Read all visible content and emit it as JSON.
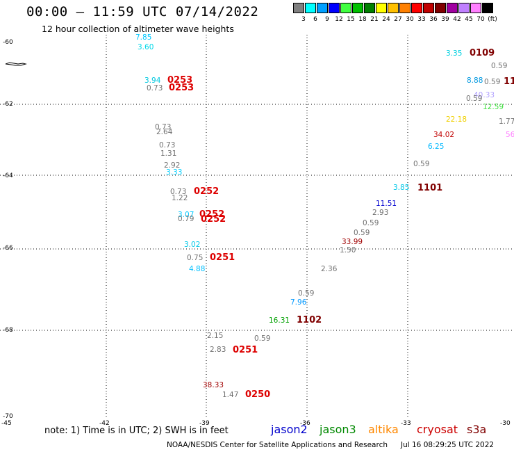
{
  "header": {
    "title": "00:00 – 11:59 UTC 07/14/2022",
    "subtitle": "12 hour collection of altimeter wave heights"
  },
  "color_scale": {
    "colors": [
      "#808080",
      "#00ffff",
      "#00a0ff",
      "#0000ff",
      "#40ff40",
      "#00c000",
      "#008000",
      "#ffff00",
      "#ffc000",
      "#ff8000",
      "#ff0000",
      "#c00000",
      "#800000",
      "#a000a0",
      "#c080ff",
      "#ff80ff",
      "#000000"
    ],
    "labels": [
      "3",
      "6",
      "9",
      "12",
      "15",
      "18",
      "21",
      "24",
      "27",
      "30",
      "33",
      "36",
      "39",
      "42",
      "45",
      "70",
      "(ft)"
    ]
  },
  "axes": {
    "y_labels": [
      "-60",
      "-62",
      "-64",
      "-66",
      "-68",
      "-70"
    ],
    "x_labels": [
      "-45",
      "-42",
      "-39",
      "-36",
      "-33",
      "-30"
    ]
  },
  "observations": [
    {
      "text": "7.85",
      "color": "#00c8ff"
    },
    {
      "text": "3.60",
      "color": "#00d8e8"
    },
    {
      "text": "3.94",
      "color": "#00c8e0"
    },
    {
      "text": "0.73",
      "color": "#707070"
    },
    {
      "text": "0.73",
      "color": "#707070"
    },
    {
      "text": "2.64",
      "color": "#707070"
    },
    {
      "text": "0.73",
      "color": "#707070"
    },
    {
      "text": "1.31",
      "color": "#707070"
    },
    {
      "text": "2.92",
      "color": "#707070"
    },
    {
      "text": "3.33",
      "color": "#00d0ff"
    },
    {
      "text": "0.73",
      "color": "#707070"
    },
    {
      "text": "1.22",
      "color": "#707070"
    },
    {
      "text": "3.07",
      "color": "#00c8ff"
    },
    {
      "text": "0.79",
      "color": "#707070"
    },
    {
      "text": "3.02",
      "color": "#00c8e8"
    },
    {
      "text": "0.75",
      "color": "#707070"
    },
    {
      "text": "4.88",
      "color": "#00c0ff"
    },
    {
      "text": "2.36",
      "color": "#707070"
    },
    {
      "text": "0.59",
      "color": "#707070"
    },
    {
      "text": "7.96",
      "color": "#0098ff"
    },
    {
      "text": "16.31",
      "color": "#00a000"
    },
    {
      "text": "2.15",
      "color": "#707070"
    },
    {
      "text": "0.59",
      "color": "#707070"
    },
    {
      "text": "2.83",
      "color": "#707070"
    },
    {
      "text": "38.33",
      "color": "#a00000"
    },
    {
      "text": "1.47",
      "color": "#707070"
    },
    {
      "text": "3.35",
      "color": "#00d0e0"
    },
    {
      "text": "0.59",
      "color": "#707070"
    },
    {
      "text": "8.88",
      "color": "#0098e0"
    },
    {
      "text": "0.59",
      "color": "#707070"
    },
    {
      "text": "40.33",
      "color": "#b0a0ff"
    },
    {
      "text": "0.59",
      "color": "#707070"
    },
    {
      "text": "12.59",
      "color": "#40e040"
    },
    {
      "text": "22.18",
      "color": "#f0d000"
    },
    {
      "text": "1.77",
      "color": "#707070"
    },
    {
      "text": "34.02",
      "color": "#c00000"
    },
    {
      "text": "56",
      "color": "#ff80ff"
    },
    {
      "text": "6.25",
      "color": "#00b8ff"
    },
    {
      "text": "0.59",
      "color": "#707070"
    },
    {
      "text": "3.85",
      "color": "#00c8e8"
    },
    {
      "text": "11.51",
      "color": "#0000d0"
    },
    {
      "text": "2.93",
      "color": "#707070"
    },
    {
      "text": "0.59",
      "color": "#707070"
    },
    {
      "text": "0.59",
      "color": "#707070"
    },
    {
      "text": "33.99",
      "color": "#a00000"
    },
    {
      "text": "1.50",
      "color": "#707070"
    }
  ],
  "pass_labels": [
    {
      "text": "0253",
      "color": "#dd0000"
    },
    {
      "text": "0253",
      "color": "#dd0000"
    },
    {
      "text": "0252",
      "color": "#dd0000"
    },
    {
      "text": "0252",
      "color": "#dd0000"
    },
    {
      "text": "0252",
      "color": "#dd0000"
    },
    {
      "text": "0251",
      "color": "#dd0000"
    },
    {
      "text": "1102",
      "color": "#800000"
    },
    {
      "text": "0251",
      "color": "#dd0000"
    },
    {
      "text": "0250",
      "color": "#dd0000"
    },
    {
      "text": "0109",
      "color": "#800000"
    },
    {
      "text": "11",
      "color": "#800000"
    },
    {
      "text": "1101",
      "color": "#800000"
    }
  ],
  "footer": {
    "note": "note:  1) Time is in UTC;  2) SWH is in feet",
    "satellites": [
      {
        "name": "jason2",
        "color": "#0000cc"
      },
      {
        "name": "jason3",
        "color": "#008800"
      },
      {
        "name": "altika",
        "color": "#ff8800"
      },
      {
        "name": "cryosat",
        "color": "#cc0000"
      },
      {
        "name": "s3a",
        "color": "#800000"
      }
    ],
    "credit": "NOAA/NESDIS Center for Satellite Applications and Research",
    "timestamp": "Jul 16 08:29:25 UTC 2022"
  }
}
